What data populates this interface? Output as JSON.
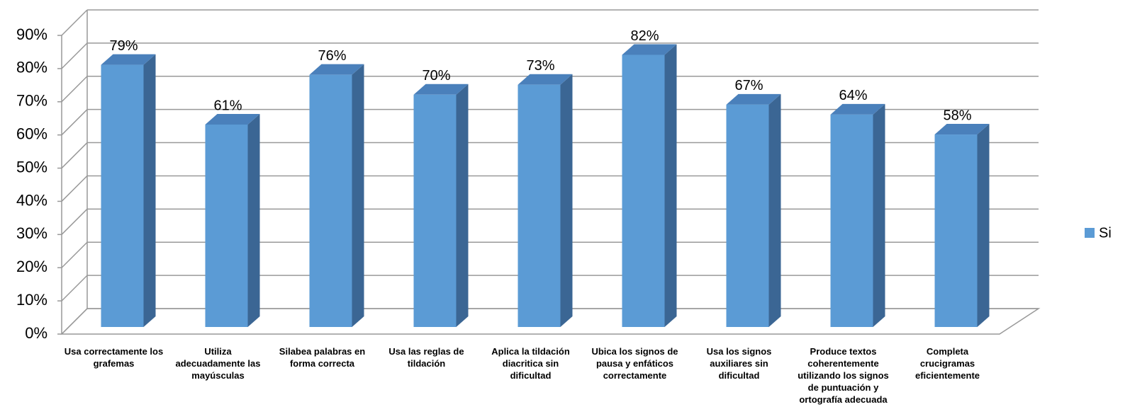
{
  "chart_data": {
    "type": "bar3d",
    "categories": [
      "Usa correctamente los grafemas",
      "Utiliza adecuadamente las mayúsculas",
      "Silabea palabras en forma correcta",
      "Usa las reglas de tildación",
      "Aplica la tildación diacritica sin dificultad",
      "Ubica los signos de pausa y enfáticos correctamente",
      "Usa los signos auxiliares sin dificultad",
      "Produce textos coherentemente utilizando los signos de puntuación y ortografía adecuada",
      "Completa crucigramas eficientemente"
    ],
    "series": [
      {
        "name": "Si",
        "color": "#5b9bd5",
        "values": [
          79,
          61,
          76,
          70,
          73,
          82,
          67,
          64,
          58
        ],
        "value_labels": [
          "79%",
          "61%",
          "76%",
          "70%",
          "73%",
          "82%",
          "67%",
          "64%",
          "58%"
        ]
      }
    ],
    "ylim": [
      0,
      90
    ],
    "yticks": [
      {
        "value": 0,
        "label": "0%"
      },
      {
        "value": 10,
        "label": "10%"
      },
      {
        "value": 20,
        "label": "20%"
      },
      {
        "value": 30,
        "label": "30%"
      },
      {
        "value": 40,
        "label": "40%"
      },
      {
        "value": 50,
        "label": "50%"
      },
      {
        "value": 60,
        "label": "60%"
      },
      {
        "value": 70,
        "label": "70%"
      },
      {
        "value": 80,
        "label": "80%"
      },
      {
        "value": 90,
        "label": "90%"
      }
    ],
    "grid": true,
    "legend": "right"
  }
}
